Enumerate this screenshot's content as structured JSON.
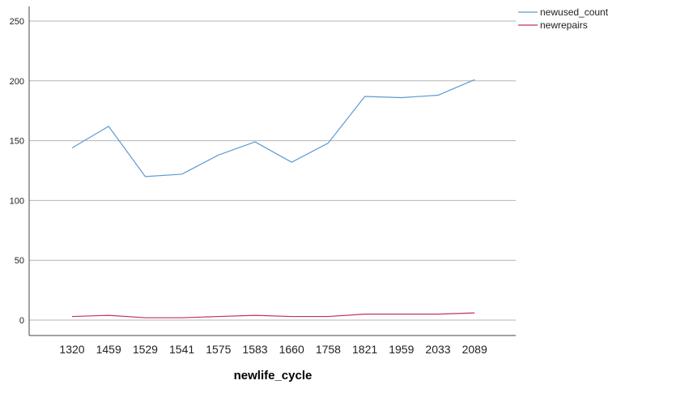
{
  "chart_data": {
    "type": "line",
    "title": "",
    "xlabel": "newlife_cycle",
    "ylabel": "",
    "categories": [
      "1320",
      "1459",
      "1529",
      "1541",
      "1575",
      "1583",
      "1660",
      "1758",
      "1821",
      "1959",
      "2033",
      "2089"
    ],
    "series": [
      {
        "name": "newused_count",
        "color": "#5b9bd5",
        "values": [
          144,
          162,
          120,
          122,
          138,
          149,
          132,
          148,
          187,
          186,
          188,
          201
        ]
      },
      {
        "name": "newrepairs",
        "color": "#c0335a",
        "values": [
          3,
          4,
          2,
          2,
          3,
          4,
          3,
          3,
          5,
          5,
          5,
          6
        ]
      }
    ],
    "yticks": [
      0,
      50,
      100,
      150,
      200,
      250
    ],
    "ylim": [
      0,
      250
    ],
    "grid": true,
    "legend_position": "top-right"
  }
}
